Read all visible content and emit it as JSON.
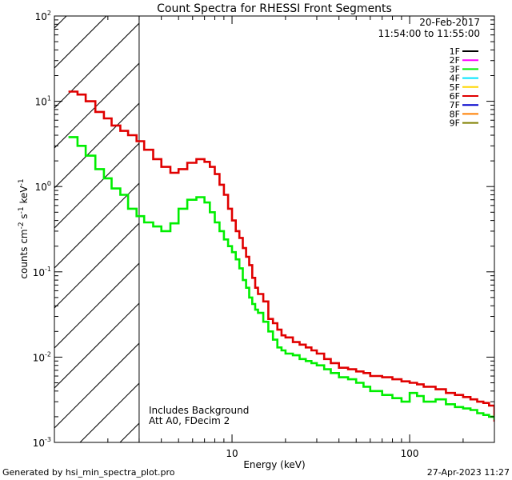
{
  "chart_data": {
    "type": "line",
    "title": "Count Spectra for RHESSI Front Segments",
    "xlabel": "Energy (keV)",
    "ylabel_parts": [
      "counts cm",
      "-2",
      " s",
      "-1",
      " keV",
      "-1"
    ],
    "xscale": "log",
    "yscale": "log",
    "xlim": [
      1,
      300
    ],
    "ylim": [
      0.001,
      100
    ],
    "x_ticks": [
      {
        "value": 10,
        "label": "10"
      },
      {
        "value": 100,
        "label": "100"
      }
    ],
    "y_ticks": [
      {
        "value": 0.001,
        "base": "10",
        "exp": "-3"
      },
      {
        "value": 0.01,
        "base": "10",
        "exp": "-2"
      },
      {
        "value": 0.1,
        "base": "10",
        "exp": "-1"
      },
      {
        "value": 1,
        "base": "10",
        "exp": "0"
      },
      {
        "value": 10,
        "base": "10",
        "exp": "1"
      },
      {
        "value": 100,
        "base": "10",
        "exp": "2"
      }
    ],
    "date_label": "20-Feb-2017",
    "time_range_label": "11:54:00 to 11:55:00",
    "legend": [
      {
        "label": "1F",
        "color": "#000000"
      },
      {
        "label": "2F",
        "color": "#ff00ff"
      },
      {
        "label": "3F",
        "color": "#00ee00"
      },
      {
        "label": "4F",
        "color": "#00e5ff"
      },
      {
        "label": "5F",
        "color": "#ffd700"
      },
      {
        "label": "6F",
        "color": "#e00000"
      },
      {
        "label": "7F",
        "color": "#0000cc"
      },
      {
        "label": "8F",
        "color": "#ff7f00"
      },
      {
        "label": "9F",
        "color": "#808000"
      }
    ],
    "hatched_region": {
      "x_from": 1,
      "x_to": 3
    },
    "annotations": [
      "Includes Background",
      "Att A0, FDecim 2"
    ],
    "series": [
      {
        "name": "6F",
        "color": "#e00000",
        "x": [
          1.2,
          1.35,
          1.5,
          1.7,
          1.9,
          2.1,
          2.35,
          2.6,
          2.9,
          3.2,
          3.6,
          4.0,
          4.5,
          5.0,
          5.6,
          6.3,
          7.0,
          7.5,
          8.0,
          8.5,
          9.0,
          9.5,
          10,
          10.5,
          11,
          11.5,
          12,
          12.5,
          13,
          13.5,
          14,
          15,
          16,
          17,
          18,
          19,
          20,
          22,
          24,
          26,
          28,
          30,
          33,
          36,
          40,
          45,
          50,
          55,
          60,
          70,
          80,
          90,
          100,
          110,
          120,
          140,
          160,
          180,
          200,
          220,
          240,
          260,
          280,
          300
        ],
        "y": [
          13,
          12,
          10,
          7.5,
          6.3,
          5.2,
          4.5,
          4.0,
          3.4,
          2.7,
          2.1,
          1.7,
          1.45,
          1.6,
          1.9,
          2.1,
          1.95,
          1.7,
          1.4,
          1.05,
          0.8,
          0.55,
          0.4,
          0.3,
          0.25,
          0.19,
          0.15,
          0.12,
          0.085,
          0.065,
          0.055,
          0.045,
          0.028,
          0.025,
          0.021,
          0.018,
          0.017,
          0.015,
          0.014,
          0.013,
          0.012,
          0.011,
          0.0095,
          0.0085,
          0.0075,
          0.0072,
          0.0068,
          0.0065,
          0.006,
          0.0058,
          0.0055,
          0.0052,
          0.005,
          0.0048,
          0.0045,
          0.0042,
          0.0038,
          0.0036,
          0.0034,
          0.0032,
          0.003,
          0.0029,
          0.0027,
          0.0018
        ]
      },
      {
        "name": "3F",
        "color": "#00ee00",
        "x": [
          1.2,
          1.35,
          1.5,
          1.7,
          1.9,
          2.1,
          2.35,
          2.6,
          2.9,
          3.2,
          3.6,
          4.0,
          4.5,
          5.0,
          5.6,
          6.3,
          7.0,
          7.5,
          8.0,
          8.5,
          9.0,
          9.5,
          10,
          10.5,
          11,
          11.5,
          12,
          12.5,
          13,
          13.5,
          14,
          15,
          16,
          17,
          18,
          19,
          20,
          22,
          24,
          26,
          28,
          30,
          33,
          36,
          40,
          45,
          50,
          55,
          60,
          70,
          80,
          90,
          100,
          110,
          120,
          140,
          160,
          180,
          200,
          220,
          240,
          260,
          280,
          300
        ],
        "y": [
          3.8,
          3.0,
          2.3,
          1.6,
          1.25,
          0.95,
          0.8,
          0.55,
          0.45,
          0.38,
          0.34,
          0.3,
          0.37,
          0.55,
          0.7,
          0.75,
          0.65,
          0.5,
          0.38,
          0.3,
          0.24,
          0.2,
          0.17,
          0.14,
          0.11,
          0.08,
          0.065,
          0.05,
          0.042,
          0.036,
          0.033,
          0.026,
          0.02,
          0.016,
          0.013,
          0.012,
          0.011,
          0.0105,
          0.0095,
          0.009,
          0.0085,
          0.008,
          0.0072,
          0.0065,
          0.0058,
          0.0055,
          0.005,
          0.0045,
          0.004,
          0.0036,
          0.0033,
          0.003,
          0.0038,
          0.0035,
          0.003,
          0.0032,
          0.0028,
          0.0026,
          0.0025,
          0.0024,
          0.0022,
          0.0021,
          0.002,
          0.0019
        ]
      }
    ]
  },
  "footer": {
    "left": "Generated by hsi_min_spectra_plot.pro",
    "right": "27-Apr-2023 11:27"
  }
}
